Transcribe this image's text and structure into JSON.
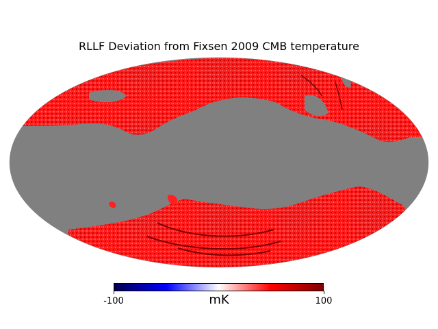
{
  "title": "RLLF Deviation from Fixsen 2009 CMB temperature",
  "colorbar": {
    "min_label": "-100",
    "max_label": "100",
    "unit": "mK",
    "min": -100,
    "max": 100,
    "colormap": "seismic",
    "stops": [
      "#00004c",
      "#0000ff",
      "#ffffff",
      "#ff0000",
      "#800000"
    ]
  },
  "map": {
    "projection": "mollweide",
    "unobserved_color": "#808080",
    "data_color": "#ff2020"
  }
}
